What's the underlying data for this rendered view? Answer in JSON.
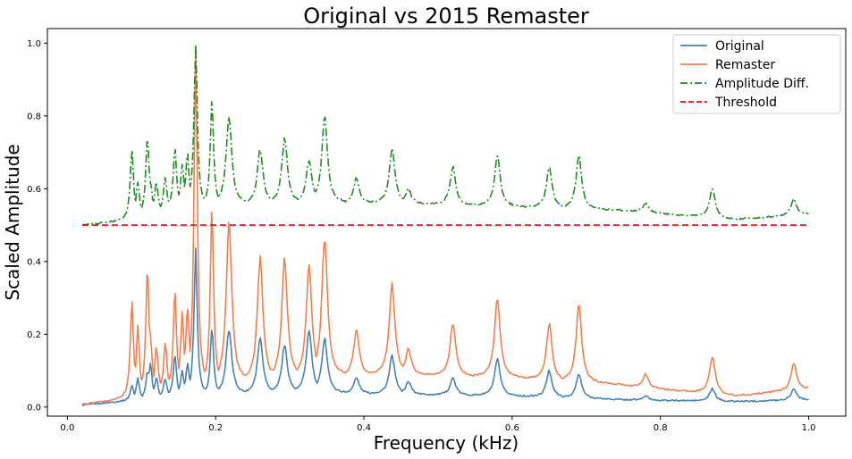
{
  "chart_data": {
    "type": "line",
    "title": "Original vs 2015 Remaster",
    "xlabel": "Frequency (kHz)",
    "ylabel": "Scaled Amplitude",
    "xlim": [
      -0.027,
      1.05
    ],
    "ylim": [
      -0.025,
      1.04
    ],
    "xticks": [
      0.0,
      0.2,
      0.4,
      0.6,
      0.8,
      1.0
    ],
    "xtick_labels": [
      "0.0",
      "0.2",
      "0.4",
      "0.6",
      "0.8",
      "1.0"
    ],
    "yticks": [
      0.0,
      0.2,
      0.4,
      0.6,
      0.8,
      1.0
    ],
    "ytick_labels": [
      "0.0",
      "0.2",
      "0.4",
      "0.6",
      "0.8",
      "1.0"
    ],
    "grid": false,
    "legend_position": "top-right",
    "series": [
      {
        "name": "Original",
        "color": "#4682b4",
        "style": "solid",
        "baseline": [
          [
            0.02,
            0.005
          ],
          [
            0.07,
            0.015
          ],
          [
            0.15,
            0.03
          ],
          [
            0.3,
            0.04
          ],
          [
            0.45,
            0.035
          ],
          [
            0.6,
            0.03
          ],
          [
            0.75,
            0.02
          ],
          [
            0.9,
            0.015
          ],
          [
            1.0,
            0.02
          ]
        ],
        "peaks": [
          [
            0.087,
            0.06
          ],
          [
            0.095,
            0.08
          ],
          [
            0.108,
            0.1
          ],
          [
            0.112,
            0.12
          ],
          [
            0.12,
            0.08
          ],
          [
            0.132,
            0.08
          ],
          [
            0.145,
            0.14
          ],
          [
            0.155,
            0.1
          ],
          [
            0.162,
            0.12
          ],
          [
            0.173,
            0.43
          ],
          [
            0.195,
            0.22
          ],
          [
            0.218,
            0.21
          ],
          [
            0.26,
            0.19
          ],
          [
            0.293,
            0.17
          ],
          [
            0.326,
            0.21
          ],
          [
            0.347,
            0.19
          ],
          [
            0.39,
            0.08
          ],
          [
            0.438,
            0.14
          ],
          [
            0.46,
            0.07
          ],
          [
            0.52,
            0.08
          ],
          [
            0.58,
            0.13
          ],
          [
            0.65,
            0.1
          ],
          [
            0.69,
            0.09
          ],
          [
            0.78,
            0.03
          ],
          [
            0.87,
            0.05
          ],
          [
            0.98,
            0.05
          ]
        ]
      },
      {
        "name": "Remaster",
        "color": "#f08050",
        "style": "solid",
        "baseline": [
          [
            0.02,
            0.007
          ],
          [
            0.07,
            0.02
          ],
          [
            0.15,
            0.05
          ],
          [
            0.3,
            0.08
          ],
          [
            0.45,
            0.09
          ],
          [
            0.6,
            0.08
          ],
          [
            0.75,
            0.06
          ],
          [
            0.9,
            0.03
          ],
          [
            1.0,
            0.05
          ]
        ],
        "peaks": [
          [
            0.087,
            0.29
          ],
          [
            0.095,
            0.22
          ],
          [
            0.108,
            0.38
          ],
          [
            0.112,
            0.2
          ],
          [
            0.12,
            0.17
          ],
          [
            0.132,
            0.18
          ],
          [
            0.145,
            0.32
          ],
          [
            0.155,
            0.26
          ],
          [
            0.162,
            0.28
          ],
          [
            0.173,
            1.0
          ],
          [
            0.195,
            0.55
          ],
          [
            0.218,
            0.51
          ],
          [
            0.26,
            0.41
          ],
          [
            0.293,
            0.41
          ],
          [
            0.326,
            0.39
          ],
          [
            0.347,
            0.47
          ],
          [
            0.39,
            0.21
          ],
          [
            0.438,
            0.34
          ],
          [
            0.46,
            0.16
          ],
          [
            0.52,
            0.23
          ],
          [
            0.58,
            0.3
          ],
          [
            0.65,
            0.23
          ],
          [
            0.69,
            0.28
          ],
          [
            0.78,
            0.09
          ],
          [
            0.87,
            0.14
          ],
          [
            0.98,
            0.12
          ]
        ]
      },
      {
        "name": "Amplitude Diff.",
        "color": "#228b22",
        "style": "dashdot",
        "baseline": [
          [
            0.02,
            0.5
          ],
          [
            0.07,
            0.51
          ],
          [
            0.15,
            0.55
          ],
          [
            0.3,
            0.56
          ],
          [
            0.45,
            0.56
          ],
          [
            0.6,
            0.55
          ],
          [
            0.75,
            0.54
          ],
          [
            0.9,
            0.515
          ],
          [
            1.0,
            0.53
          ]
        ],
        "peaks": [
          [
            0.087,
            0.71
          ],
          [
            0.095,
            0.62
          ],
          [
            0.108,
            0.75
          ],
          [
            0.112,
            0.62
          ],
          [
            0.12,
            0.62
          ],
          [
            0.132,
            0.63
          ],
          [
            0.145,
            0.71
          ],
          [
            0.155,
            0.67
          ],
          [
            0.162,
            0.7
          ],
          [
            0.173,
            1.0
          ],
          [
            0.195,
            0.84
          ],
          [
            0.218,
            0.8
          ],
          [
            0.26,
            0.71
          ],
          [
            0.293,
            0.74
          ],
          [
            0.326,
            0.68
          ],
          [
            0.347,
            0.8
          ],
          [
            0.39,
            0.63
          ],
          [
            0.438,
            0.71
          ],
          [
            0.46,
            0.6
          ],
          [
            0.52,
            0.66
          ],
          [
            0.58,
            0.69
          ],
          [
            0.65,
            0.66
          ],
          [
            0.69,
            0.69
          ],
          [
            0.78,
            0.56
          ],
          [
            0.87,
            0.6
          ],
          [
            0.98,
            0.57
          ]
        ]
      },
      {
        "name": "Threshold",
        "color": "#ff0000",
        "style": "dashed",
        "x": [
          0.02,
          1.0
        ],
        "y": [
          0.5,
          0.5
        ]
      }
    ]
  }
}
